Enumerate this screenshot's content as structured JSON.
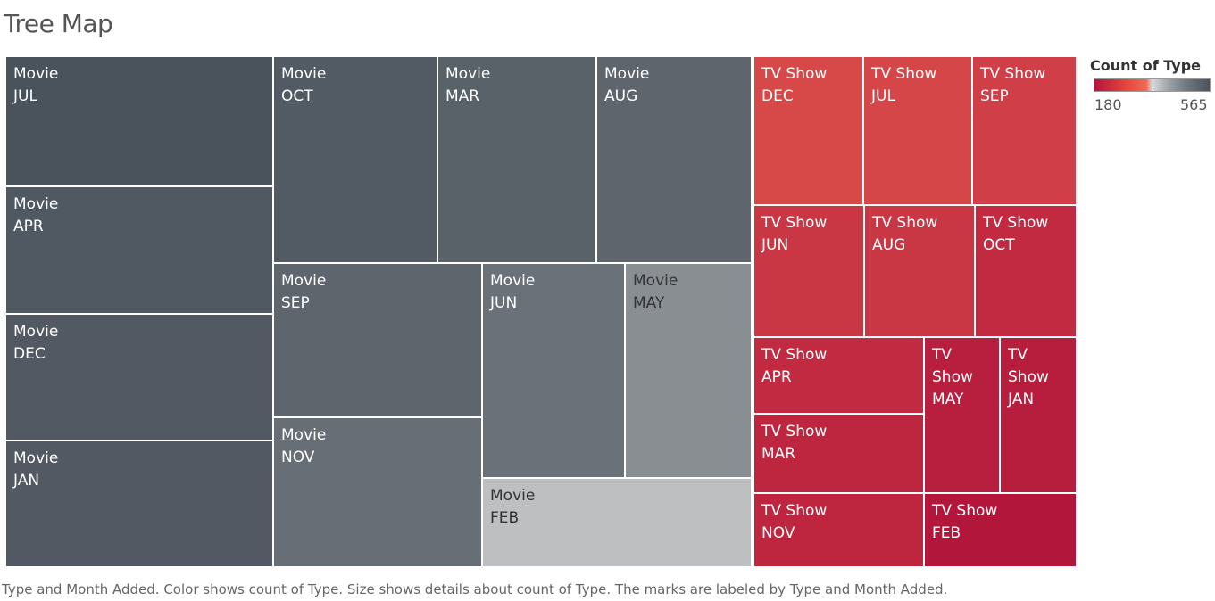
{
  "title": "Tree Map",
  "caption": "Type and Month Added.  Color shows count of Type.  Size shows details about count of Type.  The marks are labeled by Type and Month Added.",
  "legend": {
    "title": "Count of Type",
    "min": "180",
    "max": "565"
  },
  "colors": {
    "low": "#b2163b",
    "mid_low": "#f06a53",
    "mid": "#d9d9d9",
    "high": "#4a525c",
    "border": "#ffffff"
  },
  "chart_data": {
    "type": "treemap",
    "title": "Tree Map",
    "color_measure": "Count of Type",
    "color_range": [
      180,
      565
    ],
    "groups": [
      {
        "name": "Movie",
        "items": [
          {
            "month": "JUL",
            "count": 565
          },
          {
            "month": "APR",
            "count": 550
          },
          {
            "month": "DEC",
            "count": 547
          },
          {
            "month": "JAN",
            "count": 546
          },
          {
            "month": "OCT",
            "count": 545
          },
          {
            "month": "MAR",
            "count": 529
          },
          {
            "month": "AUG",
            "count": 519
          },
          {
            "month": "SEP",
            "count": 519
          },
          {
            "month": "NOV",
            "count": 498
          },
          {
            "month": "JUN",
            "count": 492
          },
          {
            "month": "MAY",
            "count": 439
          },
          {
            "month": "FEB",
            "count": 382
          }
        ]
      },
      {
        "name": "TV Show",
        "items": [
          {
            "month": "DEC",
            "count": 266
          },
          {
            "month": "JUL",
            "count": 262
          },
          {
            "month": "SEP",
            "count": 251
          },
          {
            "month": "JUN",
            "count": 236
          },
          {
            "month": "AUG",
            "count": 236
          },
          {
            "month": "OCT",
            "count": 215
          },
          {
            "month": "APR",
            "count": 214
          },
          {
            "month": "MAY",
            "count": 193
          },
          {
            "month": "JAN",
            "count": 192
          },
          {
            "month": "MAR",
            "count": 208
          },
          {
            "month": "NOV",
            "count": 207
          },
          {
            "month": "FEB",
            "count": 180
          }
        ]
      }
    ]
  }
}
